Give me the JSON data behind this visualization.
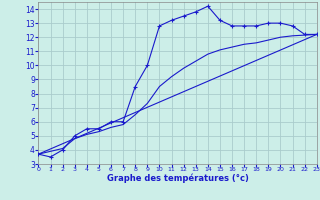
{
  "xlabel": "Graphe des températures (°c)",
  "bg_color": "#cceee8",
  "grid_color": "#aacccc",
  "line_color": "#1a1acc",
  "hours": [
    0,
    1,
    2,
    3,
    4,
    5,
    6,
    7,
    8,
    9,
    10,
    11,
    12,
    13,
    14,
    15,
    16,
    17,
    18,
    19,
    20,
    21,
    22,
    23
  ],
  "temps": [
    3.7,
    3.5,
    4.0,
    5.0,
    5.5,
    5.5,
    6.0,
    6.0,
    8.5,
    10.0,
    12.8,
    13.2,
    13.5,
    13.8,
    14.2,
    13.2,
    12.8,
    12.8,
    12.8,
    13.0,
    13.0,
    12.8,
    12.2,
    12.2
  ],
  "trend1_x": [
    0,
    23
  ],
  "trend1_y": [
    3.7,
    12.2
  ],
  "trend2_x": [
    0,
    1,
    2,
    3,
    4,
    5,
    6,
    7,
    8,
    9,
    10,
    11,
    12,
    13,
    14,
    15,
    16,
    17,
    18,
    19,
    20,
    21,
    22,
    23
  ],
  "trend2_y": [
    3.7,
    3.9,
    4.1,
    4.8,
    5.1,
    5.3,
    5.6,
    5.8,
    6.5,
    7.3,
    8.5,
    9.2,
    9.8,
    10.3,
    10.8,
    11.1,
    11.3,
    11.5,
    11.6,
    11.8,
    12.0,
    12.1,
    12.15,
    12.2
  ],
  "ylim": [
    3,
    14.5
  ],
  "xlim": [
    0,
    23
  ],
  "yticks": [
    3,
    4,
    5,
    6,
    7,
    8,
    9,
    10,
    11,
    12,
    13,
    14
  ],
  "xticks": [
    0,
    1,
    2,
    3,
    4,
    5,
    6,
    7,
    8,
    9,
    10,
    11,
    12,
    13,
    14,
    15,
    16,
    17,
    18,
    19,
    20,
    21,
    22,
    23
  ]
}
